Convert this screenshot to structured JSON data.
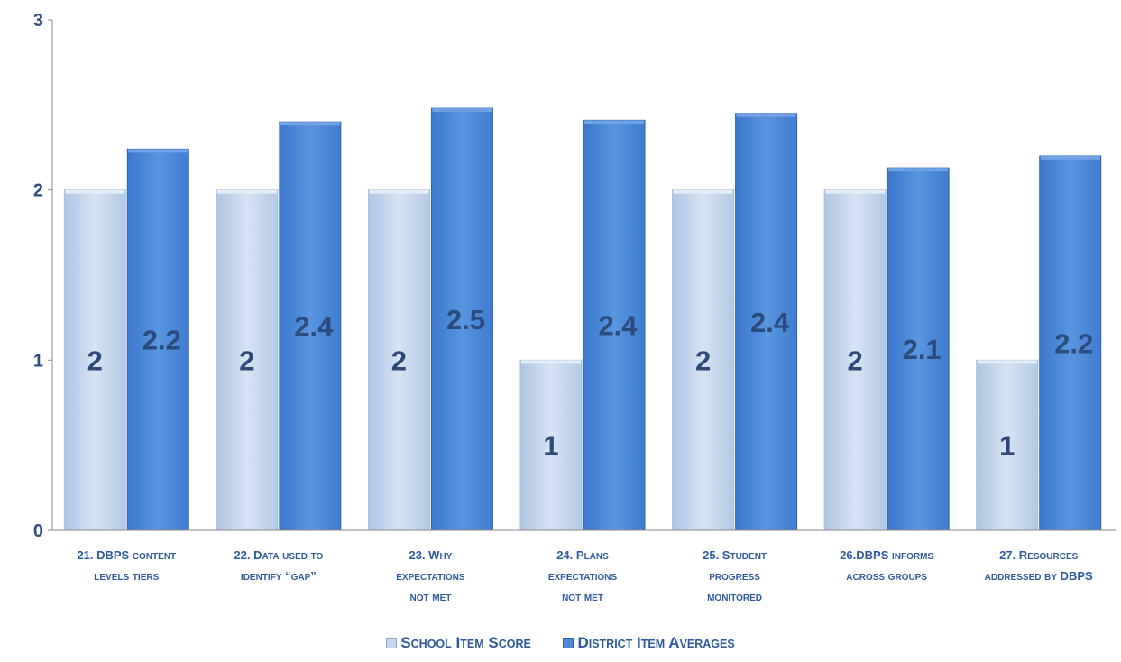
{
  "chart_data": {
    "type": "bar",
    "title": "",
    "xlabel": "",
    "ylabel": "",
    "ylim": [
      0,
      3
    ],
    "yticks": [
      "0",
      "1",
      "2",
      "3"
    ],
    "grid": false,
    "legend_position": "bottom",
    "categories": [
      [
        "21.  DBPS content",
        "levels tiers"
      ],
      [
        "22. Data used to",
        "identify “gap”"
      ],
      [
        "23. Why",
        "expectations",
        "not met"
      ],
      [
        "24. Plans",
        "expectations",
        "not met"
      ],
      [
        "25. Student",
        "progress",
        "monitored"
      ],
      [
        "26.DBPS informs",
        "across groups"
      ],
      [
        "27. Resources",
        "addressed by DBPS"
      ]
    ],
    "series": [
      {
        "name": "School Item Score",
        "color": "#c6d8ef",
        "values": [
          2,
          2,
          2,
          1,
          2,
          2,
          1
        ],
        "labels": [
          "2",
          "2",
          "2",
          "1",
          "2",
          "2",
          "1"
        ]
      },
      {
        "name": "District Item Averages",
        "color": "#4f8ad9",
        "values": [
          2.24,
          2.4,
          2.48,
          2.41,
          2.45,
          2.13,
          2.2
        ],
        "labels": [
          "2.2",
          "2.4",
          "2.5",
          "2.4",
          "2.4",
          "2.1",
          "2.2"
        ]
      }
    ]
  }
}
